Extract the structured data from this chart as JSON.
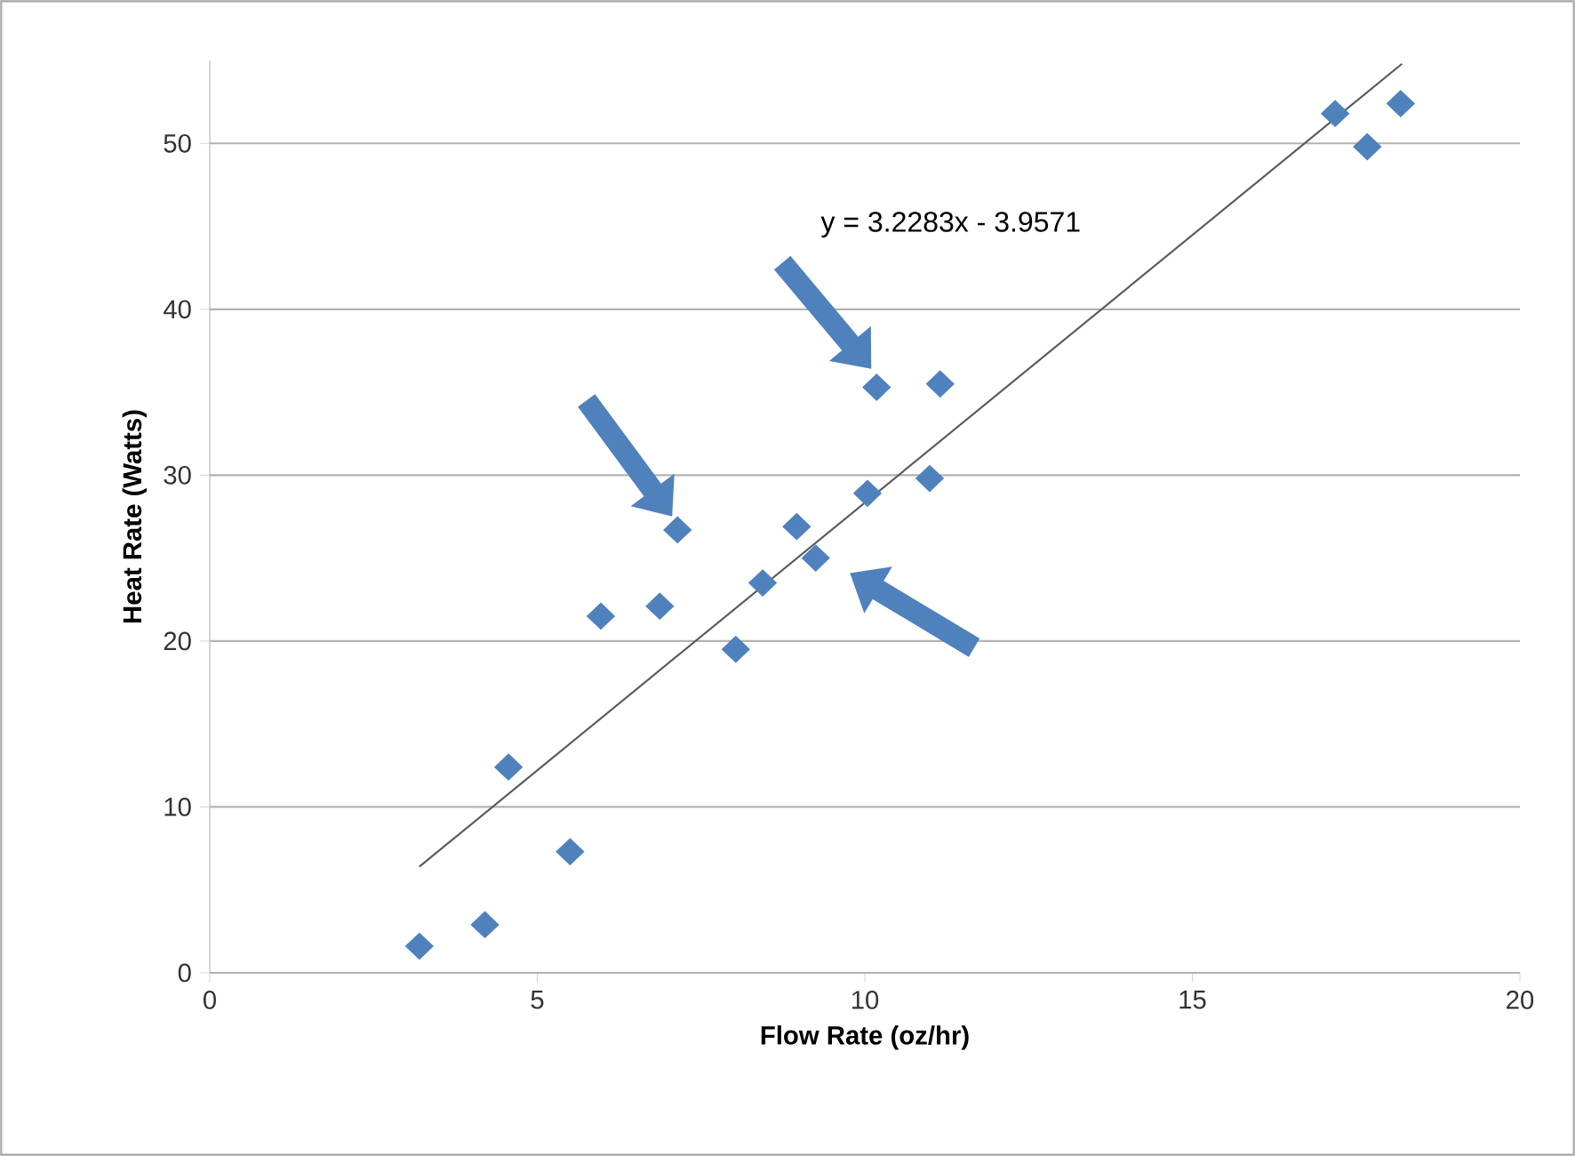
{
  "chart_data": {
    "type": "scatter",
    "xlabel": "Flow Rate (oz/hr)",
    "ylabel": "Heat Rate (Watts)",
    "xlim": [
      0,
      20
    ],
    "ylim": [
      0,
      55
    ],
    "xticks": [
      0,
      5,
      10,
      15,
      20
    ],
    "yticks": [
      0,
      10,
      20,
      30,
      40,
      50
    ],
    "grid": "y",
    "marker": "diamond",
    "annotations": [
      "y = 3.2283x - 3.9571"
    ],
    "series": [
      {
        "color": "#4f81bd",
        "x": [
          3.2,
          4.2,
          4.56,
          5.5,
          5.97,
          6.87,
          7.14,
          8.03,
          8.44,
          8.96,
          9.25,
          10.04,
          10.18,
          10.99,
          11.15,
          17.18,
          17.67,
          18.18
        ],
        "values": [
          1.6,
          2.9,
          12.4,
          7.3,
          21.5,
          22.1,
          26.7,
          19.5,
          23.5,
          26.9,
          25.0,
          28.9,
          35.3,
          29.8,
          35.5,
          51.8,
          49.8,
          52.4
        ]
      },
      {
        "type": "line",
        "color": "#595959",
        "marker": "none",
        "x": [
          3.2,
          18.2
        ],
        "values": [
          6.4,
          54.8
        ]
      }
    ]
  }
}
